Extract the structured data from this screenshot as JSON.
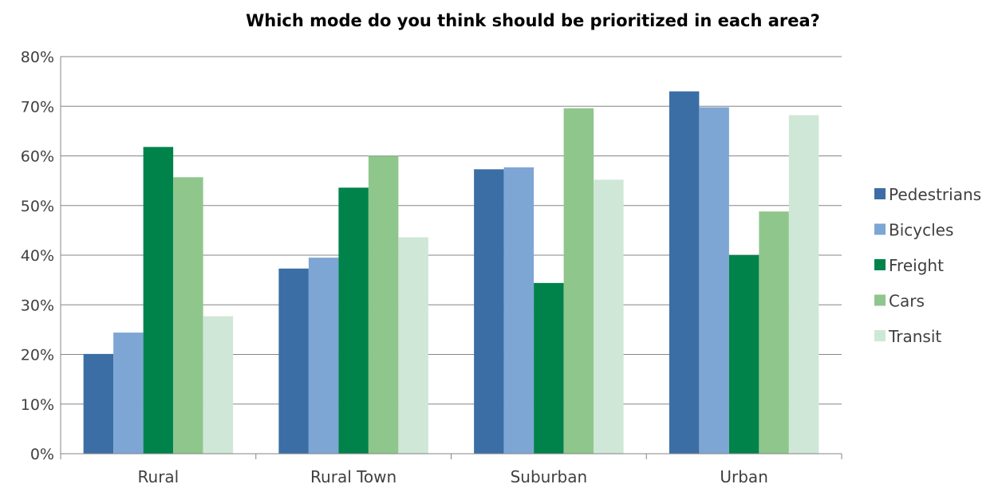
{
  "chart_data": {
    "type": "bar",
    "title": "Which mode do you think should be prioritized in each area?",
    "xlabel": "",
    "ylabel": "",
    "categories": [
      "Rural",
      "Rural Town",
      "Suburban",
      "Urban"
    ],
    "series": [
      {
        "name": "Pedestrians",
        "color": "#3b6ea5",
        "values": [
          20.1,
          37.3,
          57.3,
          73.0
        ]
      },
      {
        "name": "Bicycles",
        "color": "#7ea6d4",
        "values": [
          24.4,
          39.5,
          57.7,
          69.8
        ]
      },
      {
        "name": "Freight",
        "color": "#00834a",
        "values": [
          61.8,
          53.6,
          34.4,
          40.0
        ]
      },
      {
        "name": "Cars",
        "color": "#8fc68c",
        "values": [
          55.7,
          60.0,
          69.6,
          48.8
        ]
      },
      {
        "name": "Transit",
        "color": "#cfe7d7",
        "values": [
          27.7,
          43.6,
          55.2,
          68.2
        ]
      }
    ],
    "ylim": [
      0,
      80
    ],
    "yticks": [
      "0%",
      "10%",
      "20%",
      "30%",
      "40%",
      "50%",
      "60%",
      "70%",
      "80%"
    ],
    "grid": true,
    "legend_position": "right"
  }
}
